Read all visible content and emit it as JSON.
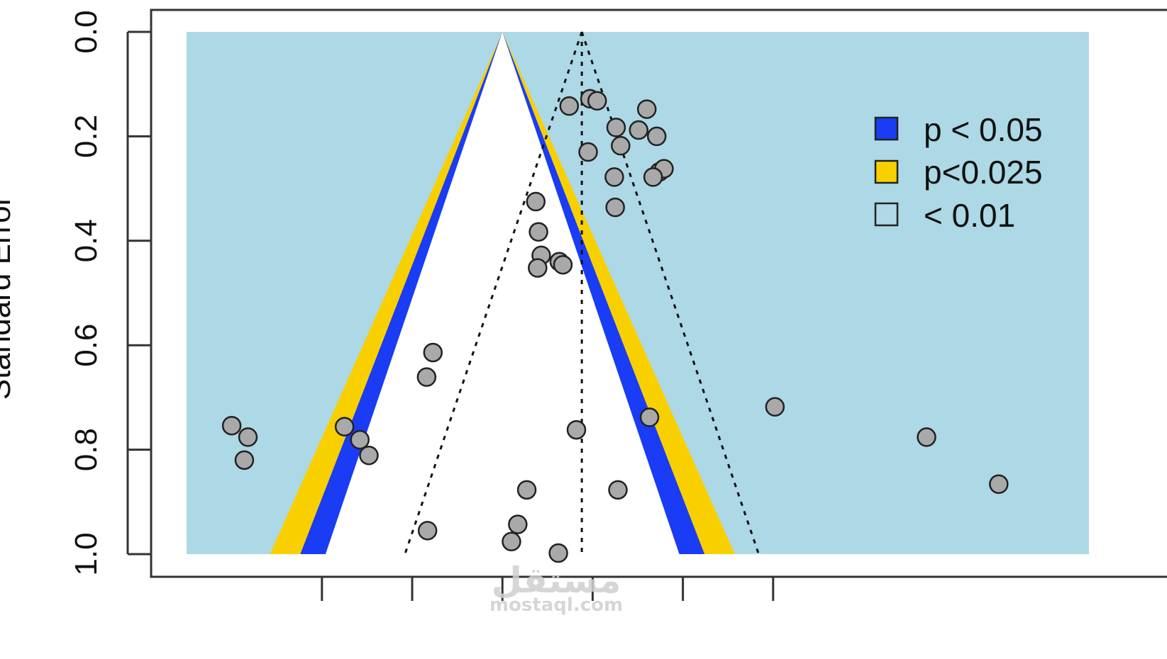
{
  "chart_data": {
    "type": "scatter",
    "chart_kind": "contour-enhanced funnel plot",
    "ylabel": "Standard Error",
    "ylim": [
      0.0,
      1.0
    ],
    "y_reversed": true,
    "y_ticks": [
      "0.0",
      "0.2",
      "0.4",
      "0.6",
      "0.8",
      "1.0"
    ],
    "x_ticks": [
      "",
      "",
      "",
      "",
      "",
      ""
    ],
    "xlim": [
      -3.5,
      6.5
    ],
    "x_tick_positions": [
      -2,
      -1,
      0,
      1,
      2,
      3
    ],
    "funnel_center": 0,
    "observed_effect_line": 0.88,
    "legend_position": "top-right",
    "legend": [
      {
        "label": "p < 0.05",
        "color": "#1a3cf5"
      },
      {
        "label": "p<0.025",
        "color": "#f8d000"
      },
      {
        "label": "< 0.01",
        "color": "#b0d8e6"
      }
    ],
    "colors": {
      "band_05": "#1a3cf5",
      "band_025": "#f8d000",
      "region_01": "#add8e6",
      "point": "#a9a9a9"
    },
    "points": [
      {
        "x": 0.74,
        "y": 0.142
      },
      {
        "x": 0.97,
        "y": 0.128
      },
      {
        "x": 1.05,
        "y": 0.132
      },
      {
        "x": 1.6,
        "y": 0.148
      },
      {
        "x": 1.26,
        "y": 0.183
      },
      {
        "x": 1.51,
        "y": 0.188
      },
      {
        "x": 1.71,
        "y": 0.2
      },
      {
        "x": 1.31,
        "y": 0.218
      },
      {
        "x": 0.95,
        "y": 0.23
      },
      {
        "x": 1.24,
        "y": 0.278
      },
      {
        "x": 1.74,
        "y": 0.268
      },
      {
        "x": 1.79,
        "y": 0.262
      },
      {
        "x": 1.67,
        "y": 0.278
      },
      {
        "x": 1.25,
        "y": 0.336
      },
      {
        "x": 0.37,
        "y": 0.325
      },
      {
        "x": 0.4,
        "y": 0.383
      },
      {
        "x": 0.43,
        "y": 0.428
      },
      {
        "x": 0.39,
        "y": 0.452
      },
      {
        "x": 0.63,
        "y": 0.44
      },
      {
        "x": 0.67,
        "y": 0.446
      },
      {
        "x": -0.77,
        "y": 0.614
      },
      {
        "x": -0.84,
        "y": 0.661
      },
      {
        "x": 3.02,
        "y": 0.718
      },
      {
        "x": 1.63,
        "y": 0.738
      },
      {
        "x": 0.82,
        "y": 0.762
      },
      {
        "x": -1.75,
        "y": 0.756
      },
      {
        "x": -1.58,
        "y": 0.781
      },
      {
        "x": -3.0,
        "y": 0.754
      },
      {
        "x": -2.82,
        "y": 0.776
      },
      {
        "x": -1.48,
        "y": 0.811
      },
      {
        "x": -2.86,
        "y": 0.82
      },
      {
        "x": 4.7,
        "y": 0.776
      },
      {
        "x": 5.5,
        "y": 0.866
      },
      {
        "x": 0.27,
        "y": 0.877
      },
      {
        "x": 1.28,
        "y": 0.877
      },
      {
        "x": -0.83,
        "y": 0.955
      },
      {
        "x": 0.17,
        "y": 0.943
      },
      {
        "x": 0.1,
        "y": 0.976
      },
      {
        "x": 0.62,
        "y": 0.998
      }
    ]
  },
  "watermark": {
    "arabic": "مستقل",
    "latin": "mostaql.com"
  }
}
